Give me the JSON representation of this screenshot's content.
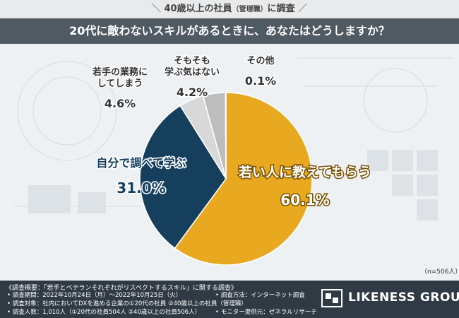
{
  "header": {
    "tag": "40歳以上の社員",
    "tag_small": "（管理職）",
    "tag_suffix": "に調査",
    "question": "20代に敵わないスキルがあるときに、あなたはどうしますか？"
  },
  "colors": {
    "slice_1": "#e8a820",
    "slice_2": "#163f5e",
    "slice_3": "#d8d8d8",
    "slice_4": "#bdbdbd",
    "slice_5": "#8e8e8e"
  },
  "chart_data": {
    "type": "pie",
    "labels": [
      "若い人に教えてもらう",
      "自分で調べて学ぶ",
      "若手の業務にしてしまう",
      "そもそも学ぶ気はない",
      "その他"
    ],
    "values": [
      60.1,
      31.0,
      4.6,
      4.2,
      0.1
    ],
    "value_labels": [
      "60.1%",
      "31.0%",
      "4.6%",
      "4.2%",
      "0.1%"
    ],
    "label_lines": [
      [
        "若い人に教えてもらう"
      ],
      [
        "自分で調べて学ぶ"
      ],
      [
        "若手の業務に",
        "してしまう"
      ],
      [
        "そもそも",
        "学ぶ気はない"
      ],
      [
        "その他"
      ]
    ],
    "note": "（n=506人）"
  },
  "footer": {
    "title": "《調査概要：「若手とベテランそれぞれがリスペクトするスキル」に関する調査》",
    "left": [
      "• 調査期間：2022年10月24日（月）〜2022年10月25日（火）",
      "• 調査対象：社内においてDXを進める企業の①20代の社員 ②40歳以上の社員（管理職）",
      "• 調査人数：1,010人（①20代の社員504人 ②40歳以上の社員506人）"
    ],
    "right": [
      "• 調査方法：インターネット調査",
      "• モニター提供元：ゼネラルリサーチ"
    ],
    "logo": "LIKENESS GROUP"
  }
}
